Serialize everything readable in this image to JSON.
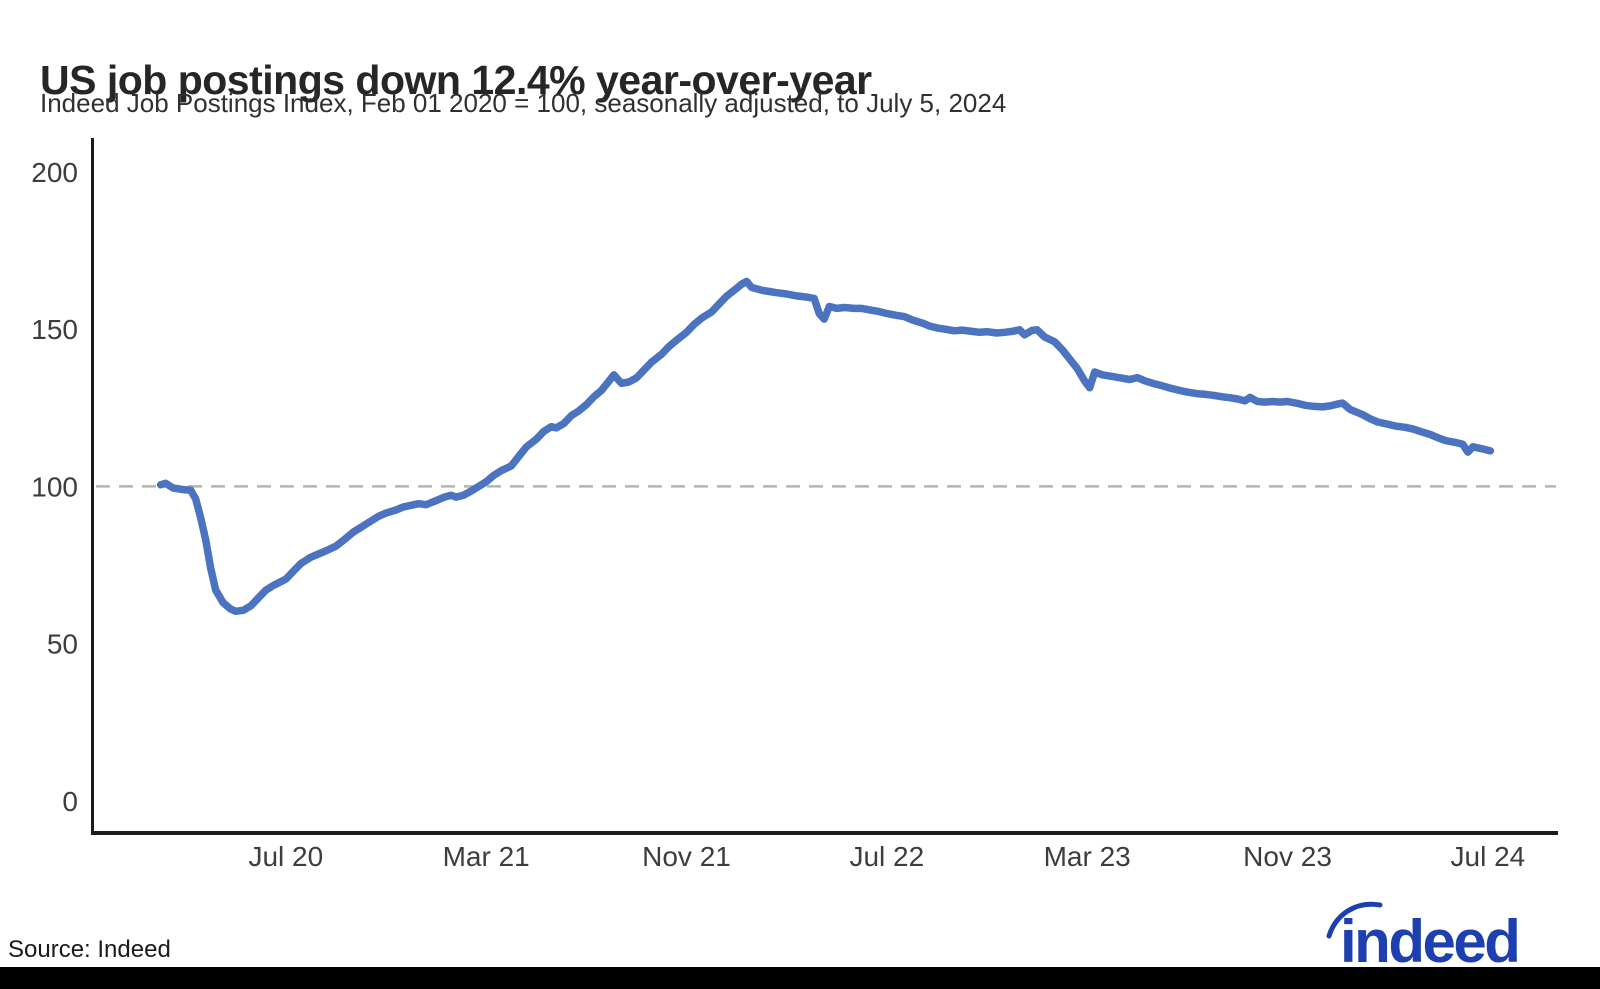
{
  "header": {
    "title": "US job postings down 12.4% year-over-year",
    "subtitle": "Indeed Job Postings Index, Feb 01 2020 = 100, seasonally adjusted, to July 5, 2024"
  },
  "footer": {
    "source_label": "Source: Indeed",
    "logo_text": "indeed"
  },
  "colors": {
    "line": "#4b73c0",
    "axis": "#1c1c1c",
    "tick_label": "#3d3d3d",
    "dashed_reference": "#b5b5b5",
    "logo_blue": "#1e3faf",
    "title_text": "#262626",
    "bottom_bar": "#000000",
    "background": "#ffffff"
  },
  "chart_data": {
    "type": "line",
    "title": "US job postings down 12.4% year-over-year",
    "subtitle": "Indeed Job Postings Index, Feb 01 2020 = 100, seasonally adjusted, to July 5, 2024",
    "source": "Source: Indeed",
    "legend": "none",
    "grid": "none; single dashed horizontal reference line at y=100",
    "baseline": {
      "value": 100,
      "style": "dashed"
    },
    "x_axis": {
      "unit": "months since Feb 01 2020",
      "tick_labels": [
        "Jul 20",
        "Mar 21",
        "Nov 21",
        "Jul 22",
        "Mar 23",
        "Nov 23",
        "Jul 24"
      ],
      "tick_months": [
        5,
        13,
        21,
        29,
        37,
        45,
        53
      ],
      "range_months": [
        -2.7,
        55.8
      ]
    },
    "y_axis": {
      "ticks": [
        0,
        50,
        100,
        150,
        200
      ],
      "tick_labels": [
        "0",
        "50",
        "100",
        "150",
        "200"
      ],
      "range": [
        -9.9,
        210.8
      ]
    },
    "series": [
      {
        "name": "Indeed Job Postings Index, US, seasonally adjusted",
        "color": "#4b73c0",
        "start": "Feb 01 2020",
        "end": "July 5, 2024",
        "end_value": 111.3,
        "points": [
          [
            0,
            100.5
          ],
          [
            0.2,
            101
          ],
          [
            0.5,
            99.5
          ],
          [
            0.9,
            99
          ],
          [
            1.2,
            98.8
          ],
          [
            1.4,
            96
          ],
          [
            1.6,
            90
          ],
          [
            1.8,
            83
          ],
          [
            2.0,
            74
          ],
          [
            2.2,
            67
          ],
          [
            2.5,
            63
          ],
          [
            2.8,
            61
          ],
          [
            3.0,
            60.3
          ],
          [
            3.3,
            60.6
          ],
          [
            3.6,
            62
          ],
          [
            3.9,
            64.5
          ],
          [
            4.2,
            67
          ],
          [
            4.5,
            68.5
          ],
          [
            5.0,
            70.5
          ],
          [
            5.3,
            73
          ],
          [
            5.6,
            75.5
          ],
          [
            6.0,
            77.5
          ],
          [
            6.3,
            78.5
          ],
          [
            6.6,
            79.5
          ],
          [
            7.0,
            81
          ],
          [
            7.4,
            83.5
          ],
          [
            7.7,
            85.5
          ],
          [
            8.0,
            87
          ],
          [
            8.4,
            89
          ],
          [
            8.7,
            90.5
          ],
          [
            9.0,
            91.5
          ],
          [
            9.4,
            92.5
          ],
          [
            9.7,
            93.5
          ],
          [
            10.0,
            94
          ],
          [
            10.3,
            94.5
          ],
          [
            10.6,
            94.2
          ],
          [
            11.0,
            95.5
          ],
          [
            11.3,
            96.5
          ],
          [
            11.6,
            97.2
          ],
          [
            11.8,
            96.6
          ],
          [
            12.1,
            97.2
          ],
          [
            12.4,
            98.5
          ],
          [
            12.7,
            100
          ],
          [
            13.0,
            101.5
          ],
          [
            13.3,
            103.5
          ],
          [
            13.6,
            105
          ],
          [
            14.0,
            106.5
          ],
          [
            14.3,
            109.5
          ],
          [
            14.6,
            112.5
          ],
          [
            15.0,
            115
          ],
          [
            15.3,
            117.5
          ],
          [
            15.6,
            119
          ],
          [
            15.8,
            118.6
          ],
          [
            16.1,
            120
          ],
          [
            16.4,
            122.5
          ],
          [
            16.7,
            124
          ],
          [
            17.0,
            126
          ],
          [
            17.3,
            128.5
          ],
          [
            17.6,
            130.5
          ],
          [
            17.9,
            133.5
          ],
          [
            18.1,
            135.5
          ],
          [
            18.4,
            132.8
          ],
          [
            18.7,
            133.2
          ],
          [
            19.0,
            134.5
          ],
          [
            19.3,
            137
          ],
          [
            19.6,
            139.5
          ],
          [
            20.0,
            142
          ],
          [
            20.3,
            144.5
          ],
          [
            20.6,
            146.5
          ],
          [
            21.0,
            149
          ],
          [
            21.3,
            151.5
          ],
          [
            21.6,
            153.5
          ],
          [
            22.0,
            155.5
          ],
          [
            22.3,
            158
          ],
          [
            22.6,
            160.5
          ],
          [
            23.0,
            163
          ],
          [
            23.2,
            164.3
          ],
          [
            23.4,
            165.2
          ],
          [
            23.6,
            163.3
          ],
          [
            24.0,
            162.4
          ],
          [
            24.3,
            162
          ],
          [
            24.6,
            161.6
          ],
          [
            25.0,
            161.2
          ],
          [
            25.4,
            160.6
          ],
          [
            25.8,
            160.2
          ],
          [
            26.1,
            159.8
          ],
          [
            26.3,
            155
          ],
          [
            26.5,
            153.2
          ],
          [
            26.7,
            157.2
          ],
          [
            27.0,
            156.6
          ],
          [
            27.3,
            156.9
          ],
          [
            27.7,
            156.6
          ],
          [
            28.0,
            156.6
          ],
          [
            28.4,
            156
          ],
          [
            28.7,
            155.6
          ],
          [
            29.0,
            155
          ],
          [
            29.4,
            154.4
          ],
          [
            29.7,
            154
          ],
          [
            30.0,
            153
          ],
          [
            30.4,
            152
          ],
          [
            30.7,
            151
          ],
          [
            31.0,
            150.4
          ],
          [
            31.4,
            149.9
          ],
          [
            31.7,
            149.5
          ],
          [
            32.0,
            149.7
          ],
          [
            32.4,
            149.3
          ],
          [
            32.7,
            149
          ],
          [
            33.0,
            149.2
          ],
          [
            33.4,
            148.8
          ],
          [
            33.7,
            149
          ],
          [
            34.0,
            149.3
          ],
          [
            34.3,
            149.8
          ],
          [
            34.5,
            148.2
          ],
          [
            34.8,
            149.6
          ],
          [
            35.0,
            149.8
          ],
          [
            35.3,
            147.5
          ],
          [
            35.7,
            146
          ],
          [
            36.0,
            143.5
          ],
          [
            36.3,
            140.5
          ],
          [
            36.6,
            137.5
          ],
          [
            36.9,
            133.5
          ],
          [
            37.1,
            131.4
          ],
          [
            37.3,
            136.4
          ],
          [
            37.6,
            135.5
          ],
          [
            38.0,
            135
          ],
          [
            38.4,
            134.4
          ],
          [
            38.7,
            134
          ],
          [
            39.0,
            134.6
          ],
          [
            39.3,
            133.6
          ],
          [
            39.7,
            132.6
          ],
          [
            40.0,
            132
          ],
          [
            40.3,
            131.3
          ],
          [
            40.7,
            130.5
          ],
          [
            41.0,
            130
          ],
          [
            41.4,
            129.5
          ],
          [
            41.7,
            129.3
          ],
          [
            42.0,
            129
          ],
          [
            42.4,
            128.5
          ],
          [
            42.7,
            128.2
          ],
          [
            43.0,
            127.8
          ],
          [
            43.3,
            127.2
          ],
          [
            43.5,
            128.3
          ],
          [
            43.8,
            127
          ],
          [
            44.1,
            126.8
          ],
          [
            44.4,
            127
          ],
          [
            44.7,
            126.8
          ],
          [
            45.0,
            127
          ],
          [
            45.4,
            126.4
          ],
          [
            45.7,
            125.8
          ],
          [
            46.0,
            125.5
          ],
          [
            46.4,
            125.3
          ],
          [
            46.7,
            125.6
          ],
          [
            47.0,
            126.2
          ],
          [
            47.2,
            126.5
          ],
          [
            47.5,
            124.5
          ],
          [
            48.0,
            122.8
          ],
          [
            48.3,
            121.5
          ],
          [
            48.6,
            120.5
          ],
          [
            49.0,
            119.8
          ],
          [
            49.3,
            119.2
          ],
          [
            49.7,
            118.8
          ],
          [
            50.0,
            118.3
          ],
          [
            50.3,
            117.5
          ],
          [
            50.7,
            116.5
          ],
          [
            51.0,
            115.5
          ],
          [
            51.3,
            114.6
          ],
          [
            51.7,
            114
          ],
          [
            52.0,
            113.4
          ],
          [
            52.2,
            110.9
          ],
          [
            52.4,
            112.6
          ],
          [
            52.7,
            112.1
          ],
          [
            53.0,
            111.5
          ],
          [
            53.1,
            111.3
          ]
        ]
      }
    ]
  }
}
